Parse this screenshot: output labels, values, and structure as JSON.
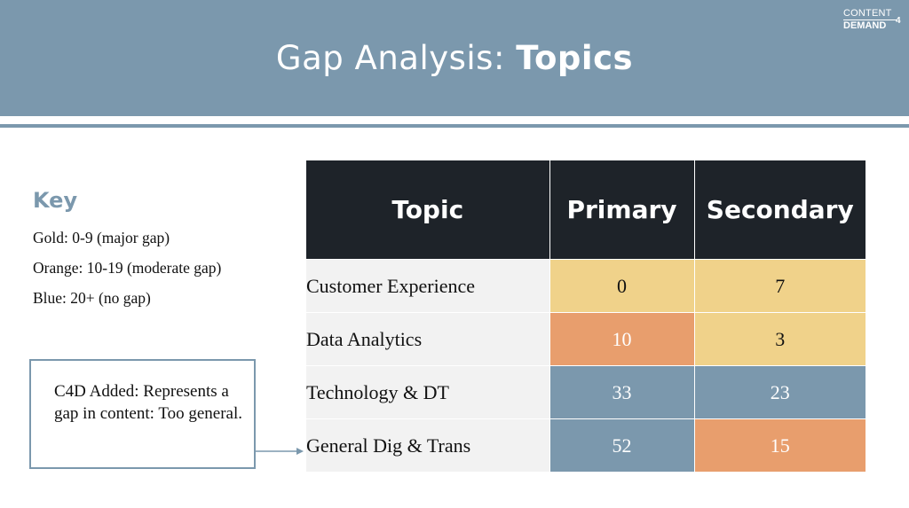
{
  "slide": {
    "title_prefix": "Gap Analysis: ",
    "title_bold": "Topics",
    "logo": {
      "line1": "CONTENT",
      "line2": "DEMAND",
      "superscript": "4"
    }
  },
  "key": {
    "title": "Key",
    "lines": [
      "Gold: 0-9 (major gap)",
      "Orange: 10-19 (moderate gap)",
      "Blue: 20+ (no gap)"
    ]
  },
  "callout": {
    "text": "C4D Added: Represents a gap in content: Too general."
  },
  "table": {
    "headers": [
      "Topic",
      "Primary",
      "Secondary"
    ],
    "rows": [
      {
        "topic": "Customer Experience",
        "primary": "0",
        "secondary": "7",
        "primary_color": "gold",
        "secondary_color": "gold"
      },
      {
        "topic": "Data Analytics",
        "primary": "10",
        "secondary": "3",
        "primary_color": "orange",
        "secondary_color": "gold"
      },
      {
        "topic": "Technology & DT",
        "primary": "33",
        "secondary": "23",
        "primary_color": "blue",
        "secondary_color": "blue"
      },
      {
        "topic": "General Dig & Trans",
        "primary": "52",
        "secondary": "15",
        "primary_color": "blue",
        "secondary_color": "orange"
      }
    ]
  },
  "colors": {
    "gold": "#f0d28a",
    "orange": "#e89e6d",
    "blue": "#7b98ad",
    "header_dark": "#1e2329"
  }
}
